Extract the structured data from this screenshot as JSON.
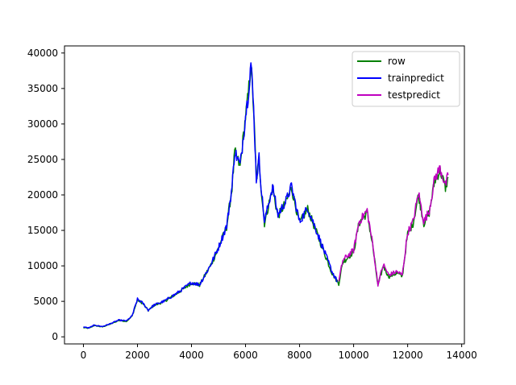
{
  "chart_data": {
    "type": "line",
    "title": "",
    "xlabel": "",
    "ylabel": "",
    "xlim": [
      -700,
      14100
    ],
    "ylim": [
      -1000,
      41000
    ],
    "xticks": [
      0,
      2000,
      4000,
      6000,
      8000,
      10000,
      12000,
      14000
    ],
    "xtick_labels": [
      "0",
      "2000",
      "4000",
      "6000",
      "8000",
      "10000",
      "12000",
      "14000"
    ],
    "yticks": [
      0,
      5000,
      10000,
      15000,
      20000,
      25000,
      30000,
      35000,
      40000
    ],
    "ytick_labels": [
      "0",
      "5000",
      "10000",
      "15000",
      "20000",
      "25000",
      "30000",
      "35000",
      "40000"
    ],
    "grid": false,
    "legend_position": "top-right",
    "series": [
      {
        "name": "row",
        "color": "#008000",
        "points": [
          [
            0,
            1300
          ],
          [
            200,
            1200
          ],
          [
            400,
            1600
          ],
          [
            700,
            1400
          ],
          [
            1000,
            1800
          ],
          [
            1300,
            2300
          ],
          [
            1600,
            2200
          ],
          [
            1800,
            2900
          ],
          [
            2000,
            5200
          ],
          [
            2200,
            4700
          ],
          [
            2400,
            3700
          ],
          [
            2600,
            4400
          ],
          [
            3000,
            5000
          ],
          [
            3500,
            6200
          ],
          [
            4000,
            7600
          ],
          [
            4300,
            7300
          ],
          [
            4700,
            10000
          ],
          [
            5000,
            12500
          ],
          [
            5300,
            15500
          ],
          [
            5500,
            21000
          ],
          [
            5600,
            26000
          ],
          [
            5800,
            24000
          ],
          [
            6000,
            31000
          ],
          [
            6100,
            34000
          ],
          [
            6200,
            38500
          ],
          [
            6300,
            32000
          ],
          [
            6400,
            22000
          ],
          [
            6500,
            25000
          ],
          [
            6600,
            20000
          ],
          [
            6700,
            16000
          ],
          [
            7000,
            21000
          ],
          [
            7200,
            17000
          ],
          [
            7500,
            19000
          ],
          [
            7700,
            21000
          ],
          [
            8000,
            16000
          ],
          [
            8300,
            18000
          ],
          [
            8600,
            15000
          ],
          [
            8900,
            12000
          ],
          [
            9200,
            9000
          ],
          [
            9450,
            7500
          ],
          [
            9600,
            10500
          ],
          [
            10000,
            12000
          ],
          [
            10200,
            16000
          ],
          [
            10500,
            17500
          ],
          [
            10700,
            13000
          ],
          [
            10900,
            7200
          ],
          [
            11100,
            10000
          ],
          [
            11300,
            8500
          ],
          [
            11600,
            9000
          ],
          [
            11800,
            8500
          ],
          [
            12000,
            14500
          ],
          [
            12200,
            16000
          ],
          [
            12400,
            20000
          ],
          [
            12600,
            16000
          ],
          [
            12800,
            17500
          ],
          [
            13000,
            22000
          ],
          [
            13200,
            23500
          ],
          [
            13400,
            21000
          ],
          [
            13500,
            22500
          ]
        ]
      },
      {
        "name": "trainpredict",
        "color": "#0000ff",
        "points": [
          [
            0,
            1400
          ],
          [
            200,
            1250
          ],
          [
            400,
            1650
          ],
          [
            700,
            1450
          ],
          [
            1000,
            1850
          ],
          [
            1300,
            2350
          ],
          [
            1600,
            2250
          ],
          [
            1800,
            2950
          ],
          [
            2000,
            5300
          ],
          [
            2200,
            4750
          ],
          [
            2400,
            3750
          ],
          [
            2600,
            4450
          ],
          [
            3000,
            5050
          ],
          [
            3500,
            6250
          ],
          [
            4000,
            7650
          ],
          [
            4300,
            7350
          ],
          [
            4700,
            10100
          ],
          [
            5000,
            12600
          ],
          [
            5300,
            15600
          ],
          [
            5500,
            21100
          ],
          [
            5600,
            26200
          ],
          [
            5800,
            24100
          ],
          [
            6000,
            31200
          ],
          [
            6100,
            34200
          ],
          [
            6200,
            38800
          ],
          [
            6300,
            32100
          ],
          [
            6400,
            22200
          ],
          [
            6500,
            25200
          ],
          [
            6600,
            20200
          ],
          [
            6700,
            16200
          ],
          [
            7000,
            21200
          ],
          [
            7200,
            17200
          ],
          [
            7500,
            19200
          ],
          [
            7700,
            21200
          ],
          [
            8000,
            16200
          ],
          [
            8300,
            18200
          ],
          [
            8600,
            15200
          ],
          [
            8900,
            12200
          ],
          [
            9200,
            9200
          ],
          [
            9400,
            7800
          ]
        ]
      },
      {
        "name": "testpredict",
        "color": "#bf00bf",
        "points": [
          [
            9450,
            7800
          ],
          [
            9600,
            10800
          ],
          [
            10000,
            12200
          ],
          [
            10200,
            16200
          ],
          [
            10500,
            17800
          ],
          [
            10700,
            13200
          ],
          [
            10900,
            7400
          ],
          [
            11100,
            10200
          ],
          [
            11300,
            8700
          ],
          [
            11600,
            9200
          ],
          [
            11800,
            8700
          ],
          [
            12000,
            14700
          ],
          [
            12200,
            16200
          ],
          [
            12400,
            20300
          ],
          [
            12600,
            16200
          ],
          [
            12800,
            17800
          ],
          [
            13000,
            22300
          ],
          [
            13200,
            23800
          ],
          [
            13400,
            21300
          ],
          [
            13500,
            22800
          ]
        ]
      }
    ]
  }
}
